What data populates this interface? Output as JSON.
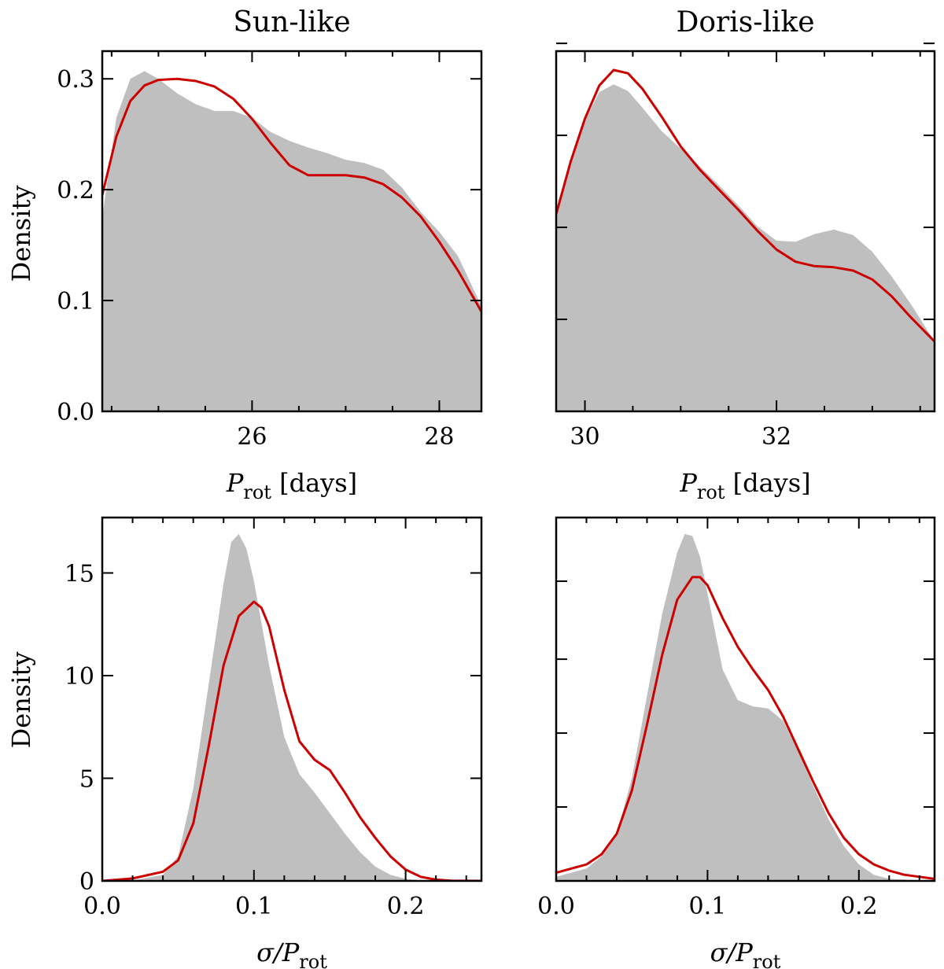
{
  "colors": {
    "fill": "#bfbfbf",
    "line": "#cc0000",
    "frame": "#000000"
  },
  "chart_data": [
    {
      "id": "sun_prot",
      "type": "area",
      "title": "Sun-like",
      "ylabel": "Density",
      "xlabel": {
        "symbol": "P",
        "sub": "rot",
        "rest": " [days]"
      },
      "xlim": [
        24.4,
        28.45
      ],
      "ylim": [
        0,
        0.325
      ],
      "xticks": [
        26,
        28
      ],
      "xtick_labels": [
        "26",
        "28"
      ],
      "xminor": [
        24.5,
        25,
        25.5,
        26.5,
        27,
        27.5,
        28
      ],
      "yticks": [
        0.0,
        0.1,
        0.2,
        0.3
      ],
      "ytick_labels": [
        "0.0",
        "0.1",
        "0.2",
        "0.3"
      ],
      "yminor": [],
      "series": [
        {
          "name": "filled",
          "style": "fill",
          "x": [
            24.4,
            24.55,
            24.7,
            24.85,
            25.0,
            25.2,
            25.4,
            25.6,
            25.8,
            26.0,
            26.2,
            26.4,
            26.6,
            26.8,
            27.0,
            27.2,
            27.4,
            27.6,
            27.8,
            28.0,
            28.2,
            28.45
          ],
          "y": [
            0.175,
            0.265,
            0.3,
            0.307,
            0.3,
            0.287,
            0.277,
            0.271,
            0.271,
            0.265,
            0.252,
            0.244,
            0.238,
            0.233,
            0.227,
            0.224,
            0.218,
            0.202,
            0.18,
            0.162,
            0.14,
            0.095
          ]
        },
        {
          "name": "red",
          "style": "line",
          "x": [
            24.4,
            24.55,
            24.7,
            24.85,
            25.0,
            25.2,
            25.4,
            25.6,
            25.8,
            26.0,
            26.2,
            26.4,
            26.6,
            26.8,
            27.0,
            27.2,
            27.4,
            27.6,
            27.8,
            28.0,
            28.2,
            28.45
          ],
          "y": [
            0.195,
            0.248,
            0.28,
            0.294,
            0.299,
            0.3,
            0.298,
            0.293,
            0.282,
            0.264,
            0.242,
            0.222,
            0.213,
            0.213,
            0.213,
            0.211,
            0.205,
            0.193,
            0.176,
            0.153,
            0.127,
            0.09
          ]
        }
      ]
    },
    {
      "id": "doris_prot",
      "type": "area",
      "title": "Doris-like",
      "ylabel": "",
      "xlabel": {
        "symbol": "P",
        "sub": "rot",
        "rest": " [days]"
      },
      "xlim": [
        29.7,
        33.65
      ],
      "ylim": [
        0,
        0.325
      ],
      "xticks": [
        30,
        32
      ],
      "xtick_labels": [
        "30",
        "32"
      ],
      "xminor": [
        30.5,
        31,
        31.5,
        32.5,
        33,
        33.5
      ],
      "yticks": [],
      "ytick_labels": [],
      "yminor": [
        0.0,
        0.083,
        0.166,
        0.249,
        0.332
      ],
      "series": [
        {
          "name": "filled",
          "style": "fill",
          "x": [
            29.7,
            29.85,
            30.0,
            30.15,
            30.3,
            30.45,
            30.6,
            30.8,
            31.0,
            31.2,
            31.4,
            31.6,
            31.8,
            32.0,
            32.2,
            32.4,
            32.6,
            32.8,
            33.0,
            33.2,
            33.4,
            33.65
          ],
          "y": [
            0.178,
            0.222,
            0.262,
            0.288,
            0.295,
            0.289,
            0.274,
            0.253,
            0.237,
            0.221,
            0.204,
            0.186,
            0.167,
            0.154,
            0.153,
            0.16,
            0.164,
            0.159,
            0.144,
            0.122,
            0.097,
            0.063
          ]
        },
        {
          "name": "red",
          "style": "line",
          "x": [
            29.7,
            29.85,
            30.0,
            30.15,
            30.3,
            30.45,
            30.6,
            30.8,
            31.0,
            31.2,
            31.4,
            31.6,
            31.8,
            32.0,
            32.2,
            32.4,
            32.6,
            32.8,
            33.0,
            33.2,
            33.4,
            33.65
          ],
          "y": [
            0.178,
            0.225,
            0.264,
            0.294,
            0.308,
            0.305,
            0.291,
            0.266,
            0.239,
            0.218,
            0.2,
            0.182,
            0.163,
            0.146,
            0.135,
            0.131,
            0.13,
            0.127,
            0.119,
            0.104,
            0.085,
            0.063
          ]
        }
      ]
    },
    {
      "id": "sun_sigma",
      "type": "area",
      "title": "",
      "ylabel": "Density",
      "xlabel": {
        "symbol": "σ/P",
        "sub": "rot",
        "rest": ""
      },
      "xlim": [
        0.0,
        0.25
      ],
      "ylim": [
        0,
        17.7
      ],
      "xticks": [
        0.0,
        0.1,
        0.2
      ],
      "xtick_labels": [
        "0.0",
        "0.1",
        "0.2"
      ],
      "xminor": [
        0.02,
        0.04,
        0.06,
        0.08,
        0.12,
        0.14,
        0.16,
        0.18,
        0.22,
        0.24
      ],
      "yticks": [
        0,
        5,
        10,
        15
      ],
      "ytick_labels": [
        "0",
        "5",
        "10",
        "15"
      ],
      "yminor": [],
      "series": [
        {
          "name": "filled",
          "style": "fill",
          "x": [
            0.0,
            0.02,
            0.04,
            0.05,
            0.06,
            0.07,
            0.08,
            0.085,
            0.09,
            0.095,
            0.1,
            0.11,
            0.12,
            0.13,
            0.14,
            0.15,
            0.16,
            0.17,
            0.18,
            0.19,
            0.2,
            0.21,
            0.22,
            0.25
          ],
          "y": [
            0,
            0.02,
            0.3,
            1.2,
            4.5,
            9.5,
            14.5,
            16.5,
            16.9,
            16.2,
            14.6,
            10.5,
            7.0,
            5.2,
            4.3,
            3.3,
            2.3,
            1.4,
            0.7,
            0.3,
            0.1,
            0.03,
            0.0,
            0.0
          ]
        },
        {
          "name": "red",
          "style": "line",
          "x": [
            0.0,
            0.02,
            0.04,
            0.05,
            0.06,
            0.07,
            0.08,
            0.09,
            0.1,
            0.105,
            0.11,
            0.12,
            0.13,
            0.14,
            0.15,
            0.16,
            0.17,
            0.18,
            0.19,
            0.2,
            0.21,
            0.22,
            0.23,
            0.25
          ],
          "y": [
            0.0,
            0.12,
            0.45,
            1.0,
            2.8,
            6.5,
            10.5,
            12.9,
            13.6,
            13.3,
            12.4,
            9.3,
            6.8,
            5.9,
            5.4,
            4.3,
            3.1,
            2.1,
            1.2,
            0.55,
            0.2,
            0.06,
            0.01,
            0.0
          ]
        }
      ]
    },
    {
      "id": "doris_sigma",
      "type": "area",
      "title": "",
      "ylabel": "",
      "xlabel": {
        "symbol": "σ/P",
        "sub": "rot",
        "rest": ""
      },
      "xlim": [
        0.0,
        0.25
      ],
      "ylim": [
        0,
        17.7
      ],
      "xticks": [
        0.0,
        0.1,
        0.2
      ],
      "xtick_labels": [
        "0.0",
        "0.1",
        "0.2"
      ],
      "xminor": [
        0.02,
        0.04,
        0.06,
        0.08,
        0.12,
        0.14,
        0.16,
        0.18,
        0.22,
        0.24
      ],
      "yticks": [],
      "ytick_labels": [],
      "yminor": [
        0,
        3.6,
        7.2,
        10.8,
        14.6
      ],
      "series": [
        {
          "name": "filled",
          "style": "fill",
          "x": [
            0.0,
            0.02,
            0.03,
            0.04,
            0.05,
            0.06,
            0.07,
            0.08,
            0.085,
            0.09,
            0.095,
            0.1,
            0.11,
            0.12,
            0.13,
            0.14,
            0.15,
            0.16,
            0.17,
            0.18,
            0.19,
            0.2,
            0.21,
            0.22,
            0.25
          ],
          "y": [
            0.2,
            0.6,
            1.2,
            2.3,
            5.0,
            9.0,
            13.0,
            16.0,
            16.9,
            16.8,
            15.8,
            14.0,
            10.3,
            8.8,
            8.5,
            8.4,
            7.8,
            6.3,
            4.6,
            3.0,
            1.7,
            0.8,
            0.3,
            0.1,
            0.0
          ]
        },
        {
          "name": "red",
          "style": "line",
          "x": [
            0.0,
            0.02,
            0.03,
            0.04,
            0.05,
            0.06,
            0.07,
            0.08,
            0.09,
            0.095,
            0.1,
            0.11,
            0.12,
            0.13,
            0.14,
            0.15,
            0.16,
            0.17,
            0.18,
            0.19,
            0.2,
            0.21,
            0.22,
            0.23,
            0.25
          ],
          "y": [
            0.4,
            0.8,
            1.3,
            2.3,
            4.4,
            7.6,
            11.0,
            13.7,
            14.8,
            14.8,
            14.4,
            12.8,
            11.4,
            10.3,
            9.3,
            8.0,
            6.4,
            4.8,
            3.3,
            2.1,
            1.3,
            0.8,
            0.5,
            0.3,
            0.1
          ]
        }
      ]
    }
  ]
}
